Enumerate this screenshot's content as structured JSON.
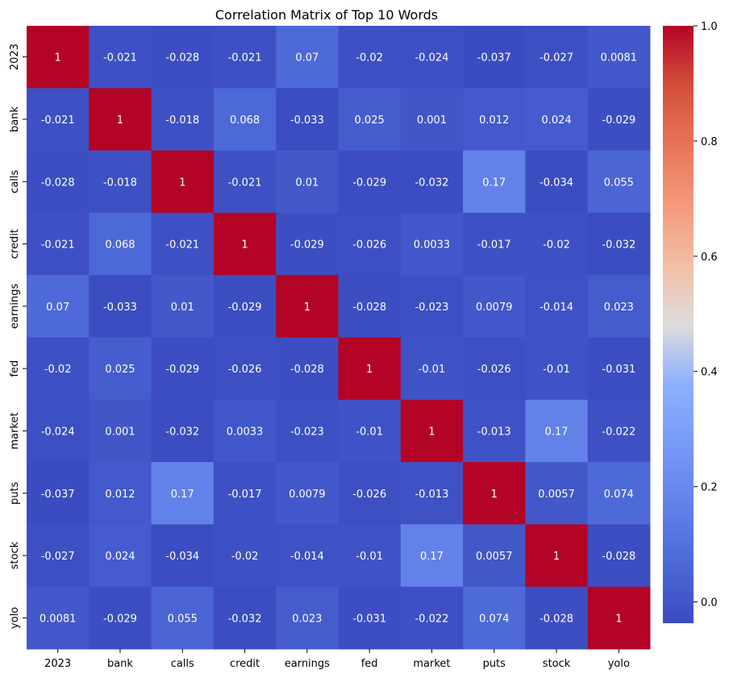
{
  "chart_data": {
    "type": "heatmap",
    "title": "Correlation Matrix of Top 10 Words",
    "xlabel": "",
    "ylabel": "",
    "rows": [
      "2023",
      "bank",
      "calls",
      "credit",
      "earnings",
      "fed",
      "market",
      "puts",
      "stock",
      "yolo"
    ],
    "columns": [
      "2023",
      "bank",
      "calls",
      "credit",
      "earnings",
      "fed",
      "market",
      "puts",
      "stock",
      "yolo"
    ],
    "values": [
      [
        1,
        -0.021,
        -0.028,
        -0.021,
        0.07,
        -0.02,
        -0.024,
        -0.037,
        -0.027,
        0.0081
      ],
      [
        -0.021,
        1,
        -0.018,
        0.068,
        -0.033,
        0.025,
        0.001,
        0.012,
        0.024,
        -0.029
      ],
      [
        -0.028,
        -0.018,
        1,
        -0.021,
        0.01,
        -0.029,
        -0.032,
        0.17,
        -0.034,
        0.055
      ],
      [
        -0.021,
        0.068,
        -0.021,
        1,
        -0.029,
        -0.026,
        0.0033,
        -0.017,
        -0.02,
        -0.032
      ],
      [
        0.07,
        -0.033,
        0.01,
        -0.029,
        1,
        -0.028,
        -0.023,
        0.0079,
        -0.014,
        0.023
      ],
      [
        -0.02,
        0.025,
        -0.029,
        -0.026,
        -0.028,
        1,
        -0.01,
        -0.026,
        -0.01,
        -0.031
      ],
      [
        -0.024,
        0.001,
        -0.032,
        0.0033,
        -0.023,
        -0.01,
        1,
        -0.013,
        0.17,
        -0.022
      ],
      [
        -0.037,
        0.012,
        0.17,
        -0.017,
        0.0079,
        -0.026,
        -0.013,
        1,
        0.0057,
        0.074
      ],
      [
        -0.027,
        0.024,
        -0.034,
        -0.02,
        -0.014,
        -0.01,
        0.17,
        0.0057,
        1,
        -0.028
      ],
      [
        0.0081,
        -0.029,
        0.055,
        -0.032,
        0.023,
        -0.031,
        -0.022,
        0.074,
        -0.028,
        1
      ]
    ],
    "colormap": "coolwarm",
    "color_range": [
      -0.037,
      1.0
    ],
    "colorbar_ticks": [
      "0.0",
      "0.2",
      "0.4",
      "0.6",
      "0.8",
      "1.0"
    ],
    "colorbar_tick_values": [
      0.0,
      0.2,
      0.4,
      0.6,
      0.8,
      1.0
    ],
    "annotations": true,
    "grid": false,
    "legend": "colorbar-right"
  }
}
